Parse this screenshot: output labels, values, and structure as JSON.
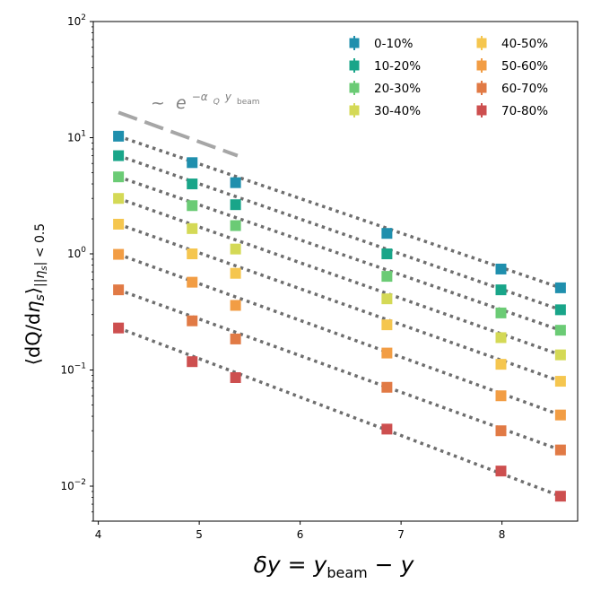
{
  "chart_data": {
    "type": "scatter",
    "xlabel": "δy = y_beam − y",
    "ylabel": "⟨dQ/dη_s⟩ | |η_s| < 0.5",
    "yscale": "log",
    "xlim": [
      3.95,
      8.75
    ],
    "ylim": [
      0.005,
      100
    ],
    "x_ticks": [
      4,
      5,
      6,
      7,
      8
    ],
    "y_ticks": [
      {
        "value": 0.01,
        "base": "10",
        "exp": "−2"
      },
      {
        "value": 0.1,
        "base": "10",
        "exp": "−1"
      },
      {
        "value": 1,
        "base": "10",
        "exp": "0"
      },
      {
        "value": 10,
        "base": "10",
        "exp": "1"
      },
      {
        "value": 100,
        "base": "10",
        "exp": "2"
      }
    ],
    "legend_position": "top-right",
    "annotation": {
      "text": "~ e^(−α_Q y_beam)",
      "tilde": "~",
      "base": "e",
      "exp_prefix": "−α",
      "exp_sub": "Q",
      "exp_mid": " y",
      "exp_sub2": "beam",
      "line_x": [
        4.2,
        5.38
      ],
      "line_y": [
        16.5,
        7.0
      ],
      "line_color": "#a6a6a6"
    },
    "x": [
      4.2,
      4.93,
      5.36,
      6.86,
      7.99,
      8.58
    ],
    "series": [
      {
        "name": "0-10%",
        "color": "#1f8fad",
        "values": [
          10.3,
          6.1,
          4.1,
          1.5,
          0.74,
          0.51
        ]
      },
      {
        "name": "10-20%",
        "color": "#19a589",
        "values": [
          7.0,
          4.0,
          2.65,
          1.0,
          0.49,
          0.33
        ]
      },
      {
        "name": "20-30%",
        "color": "#6bcb75",
        "values": [
          4.6,
          2.6,
          1.75,
          0.64,
          0.31,
          0.22
        ]
      },
      {
        "name": "30-40%",
        "color": "#d4d956",
        "values": [
          3.0,
          1.65,
          1.1,
          0.41,
          0.19,
          0.135
        ]
      },
      {
        "name": "40-50%",
        "color": "#f5c64f",
        "values": [
          1.8,
          1.0,
          0.68,
          0.245,
          0.112,
          0.08
        ]
      },
      {
        "name": "50-60%",
        "color": "#f29d44",
        "values": [
          0.99,
          0.57,
          0.36,
          0.14,
          0.06,
          0.041
        ]
      },
      {
        "name": "60-70%",
        "color": "#e17a45",
        "values": [
          0.49,
          0.265,
          0.185,
          0.071,
          0.03,
          0.0205
        ]
      },
      {
        "name": "70-80%",
        "color": "#cd4f4f",
        "values": [
          0.23,
          0.118,
          0.086,
          0.031,
          0.0135,
          0.0082
        ]
      }
    ]
  }
}
